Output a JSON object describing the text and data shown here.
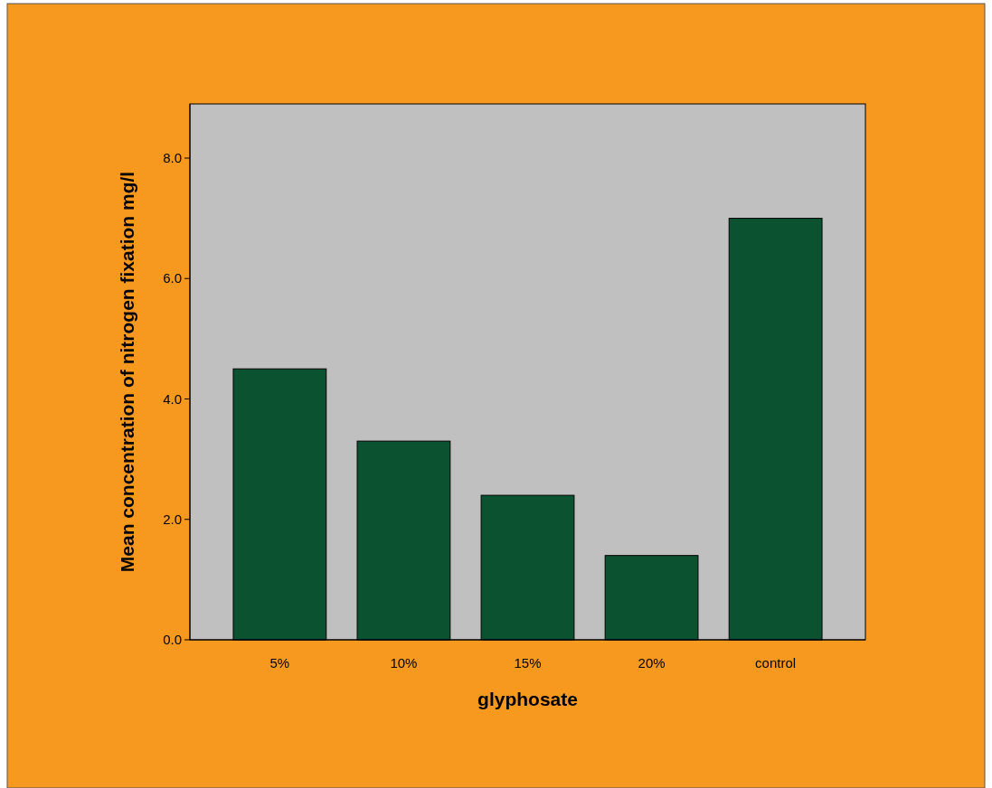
{
  "chart_data": {
    "type": "bar",
    "xlabel": "glyphosate",
    "ylabel": "Mean concentration of nitrogen fixation mg/l",
    "categories": [
      "5%",
      "10%",
      "15%",
      "20%",
      "control"
    ],
    "values": [
      4.5,
      3.3,
      2.4,
      1.4,
      7.0
    ],
    "color": "#0b5230",
    "ylim": [
      0,
      8.9
    ],
    "yticks": [
      {
        "value": 0,
        "label": "0.0"
      },
      {
        "value": 2,
        "label": "2.0"
      },
      {
        "value": 4,
        "label": "4.0"
      },
      {
        "value": 6,
        "label": "6.0"
      },
      {
        "value": 8,
        "label": "8.0"
      }
    ],
    "grid": false
  }
}
